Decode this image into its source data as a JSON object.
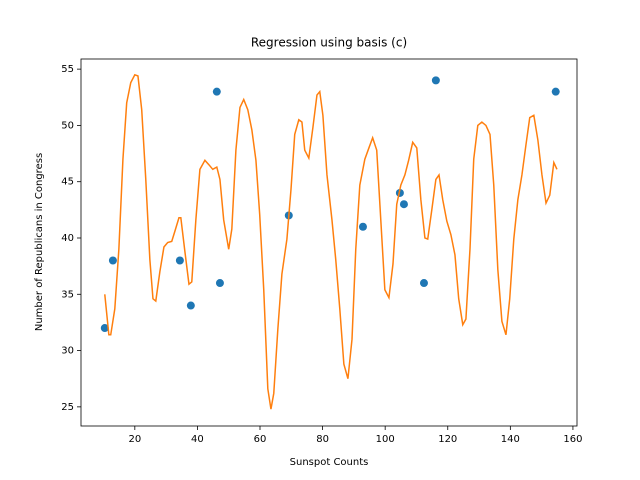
{
  "chart_data": {
    "type": "scatter",
    "title": "Regression using basis (c)",
    "x_label": "Sunspot Counts",
    "y_label": "Number of Republicans in Congress",
    "xlim": [
      2.8,
      161.3
    ],
    "ylim": [
      23.3,
      55.9
    ],
    "xticks": [
      20,
      40,
      60,
      80,
      100,
      120,
      140,
      160
    ],
    "yticks": [
      25,
      30,
      35,
      40,
      45,
      50,
      55
    ],
    "grid": false,
    "series": [
      {
        "type": "scatter",
        "color": "#1f77b4",
        "x": [
          10.4,
          13,
          34.4,
          37.9,
          46.2,
          47.2,
          69.2,
          92.9,
          104.7,
          106,
          112.4,
          116.2,
          154.5
        ],
        "values": [
          32,
          38,
          38,
          34,
          53,
          36,
          42,
          41,
          44,
          43,
          36,
          54,
          53
        ]
      },
      {
        "type": "line",
        "color": "#ff7f0e",
        "x": [
          10.4,
          11.7,
          12.3,
          13.6,
          14.9,
          16.2,
          17.4,
          18.7,
          20,
          21,
          22.2,
          23.5,
          24.8,
          25.8,
          26.7,
          28,
          29.3,
          30.5,
          31.8,
          32.8,
          34.1,
          34.7,
          36,
          37.3,
          38.2,
          39.5,
          40.8,
          42.4,
          43.7,
          44.9,
          46.2,
          47.2,
          48.4,
          50,
          51,
          52.3,
          53.6,
          54.8,
          56.1,
          57.4,
          58.7,
          59.9,
          61.2,
          62.5,
          63.5,
          64.4,
          65.7,
          67,
          68.6,
          69.9,
          71.1,
          72.4,
          73.4,
          74.3,
          75.6,
          76.9,
          78.2,
          79.1,
          80.1,
          81.4,
          83,
          84.2,
          85.5,
          86.8,
          88.1,
          89.4,
          90.6,
          91.9,
          93.5,
          94.8,
          96,
          97.3,
          98.6,
          99.9,
          101.2,
          102.5,
          103.7,
          105,
          106.3,
          107.5,
          108.8,
          110.1,
          111.4,
          112.7,
          113.6,
          114.9,
          116.2,
          117.2,
          118.4,
          119.7,
          121,
          122.3,
          123.5,
          124.8,
          125.8,
          127.1,
          128.3,
          129.6,
          130.9,
          132.2,
          133.5,
          134.7,
          136,
          137.3,
          138.6,
          139.8,
          141.1,
          142.4,
          143.7,
          145,
          146.2,
          147.5,
          148.8,
          150.1,
          151.4,
          152.6,
          153.9,
          154.9
        ],
        "values": [
          35,
          31.4,
          31.4,
          33.7,
          39,
          47,
          52,
          53.8,
          54.5,
          54.4,
          51.4,
          45.2,
          38.1,
          34.6,
          34.4,
          37,
          39.2,
          39.6,
          39.7,
          40.6,
          41.8,
          41.8,
          38.8,
          35.9,
          36.1,
          41.6,
          46.1,
          46.9,
          46.5,
          46.1,
          46.3,
          45.2,
          41.6,
          39,
          40.8,
          47.8,
          51.6,
          52.3,
          51.4,
          49.6,
          46.9,
          42.1,
          35.4,
          26.6,
          24.8,
          26.2,
          31.9,
          36.8,
          39.9,
          44.3,
          49.2,
          50.5,
          50.3,
          47.8,
          47.1,
          49.8,
          52.7,
          53,
          50.9,
          45.6,
          41.6,
          38.1,
          33.7,
          28.8,
          27.5,
          31,
          39,
          44.7,
          47,
          48,
          48.9,
          47.8,
          41.6,
          35.4,
          34.7,
          37.7,
          43,
          44.7,
          45.6,
          46.9,
          48.5,
          48,
          43.4,
          40,
          39.9,
          42.5,
          45.2,
          45.6,
          43.4,
          41.5,
          40.3,
          38.5,
          34.6,
          32.3,
          32.8,
          39,
          47,
          50,
          50.3,
          50,
          49.2,
          44.7,
          37.2,
          32.6,
          31.4,
          34.6,
          39.9,
          43.4,
          45.6,
          48.3,
          50.7,
          50.9,
          48.7,
          45.6,
          43.1,
          43.8,
          46.7,
          46.1
        ]
      }
    ]
  }
}
